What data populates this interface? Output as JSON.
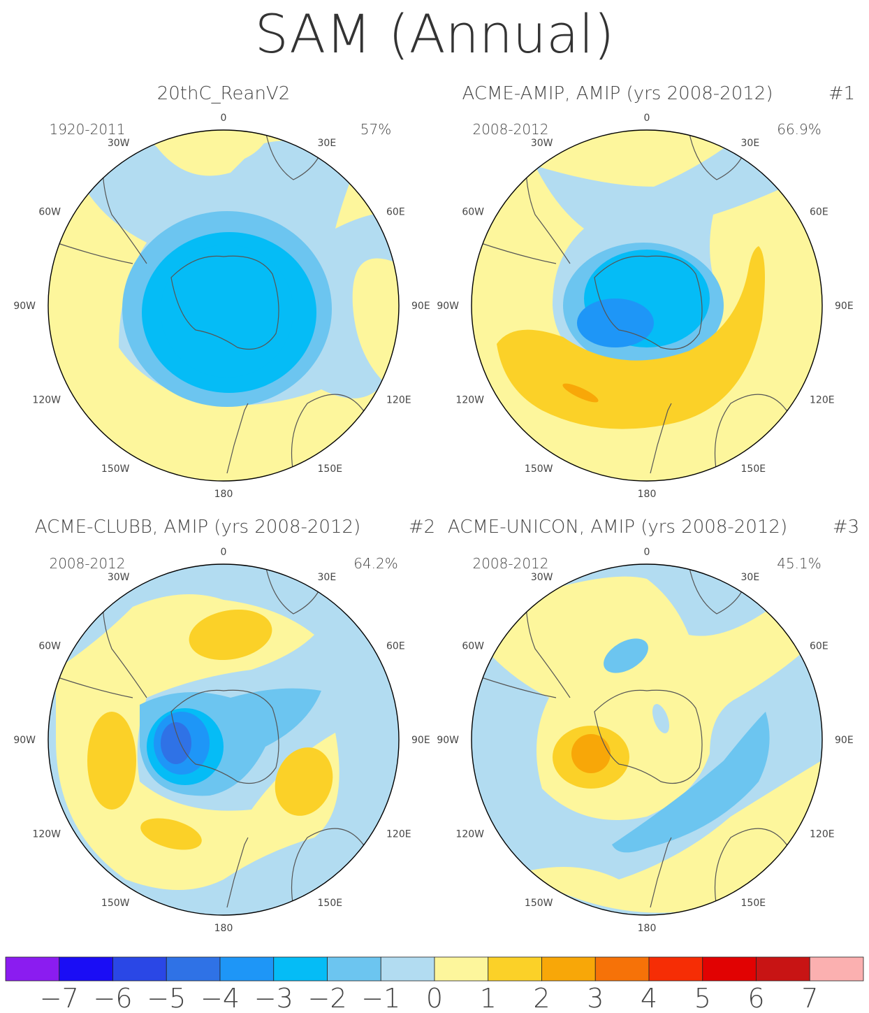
{
  "title": "SAM (Annual)",
  "panels": [
    {
      "id": "p1",
      "title": "20thC_ReanV2",
      "tag": "",
      "years": "1920-2011",
      "percent": "57%",
      "field": "obs"
    },
    {
      "id": "p2",
      "title": "ACME-AMIP, AMIP (yrs 2008-2012)",
      "tag": "#1",
      "years": "2008-2012",
      "percent": "66.9%",
      "field": "amip"
    },
    {
      "id": "p3",
      "title": "ACME-CLUBB, AMIP (yrs 2008-2012)",
      "tag": "#2",
      "years": "2008-2012",
      "percent": "64.2%",
      "field": "clubb"
    },
    {
      "id": "p4",
      "title": "ACME-UNICON, AMIP (yrs 2008-2012)",
      "tag": "#3",
      "years": "2008-2012",
      "percent": "45.1%",
      "field": "unicon"
    }
  ],
  "lon_labels": [
    "0",
    "30E",
    "60E",
    "90E",
    "120E",
    "150E",
    "180",
    "150W",
    "120W",
    "90W",
    "60W",
    "30W"
  ],
  "colorbar": {
    "colors": [
      "#8b1cf0",
      "#1a0df5",
      "#2a47e6",
      "#2f72e6",
      "#1e96f7",
      "#05bcf6",
      "#6cc5f0",
      "#b2dcf1",
      "#fdf69c",
      "#fbd128",
      "#f8a708",
      "#f67208",
      "#f62d05",
      "#e10202",
      "#c81414",
      "#fbb0b0"
    ],
    "labels": [
      "−7",
      "−6",
      "−5",
      "−4",
      "−3",
      "−2",
      "−1",
      "0",
      "1",
      "2",
      "3",
      "4",
      "5",
      "6",
      "7"
    ]
  }
}
